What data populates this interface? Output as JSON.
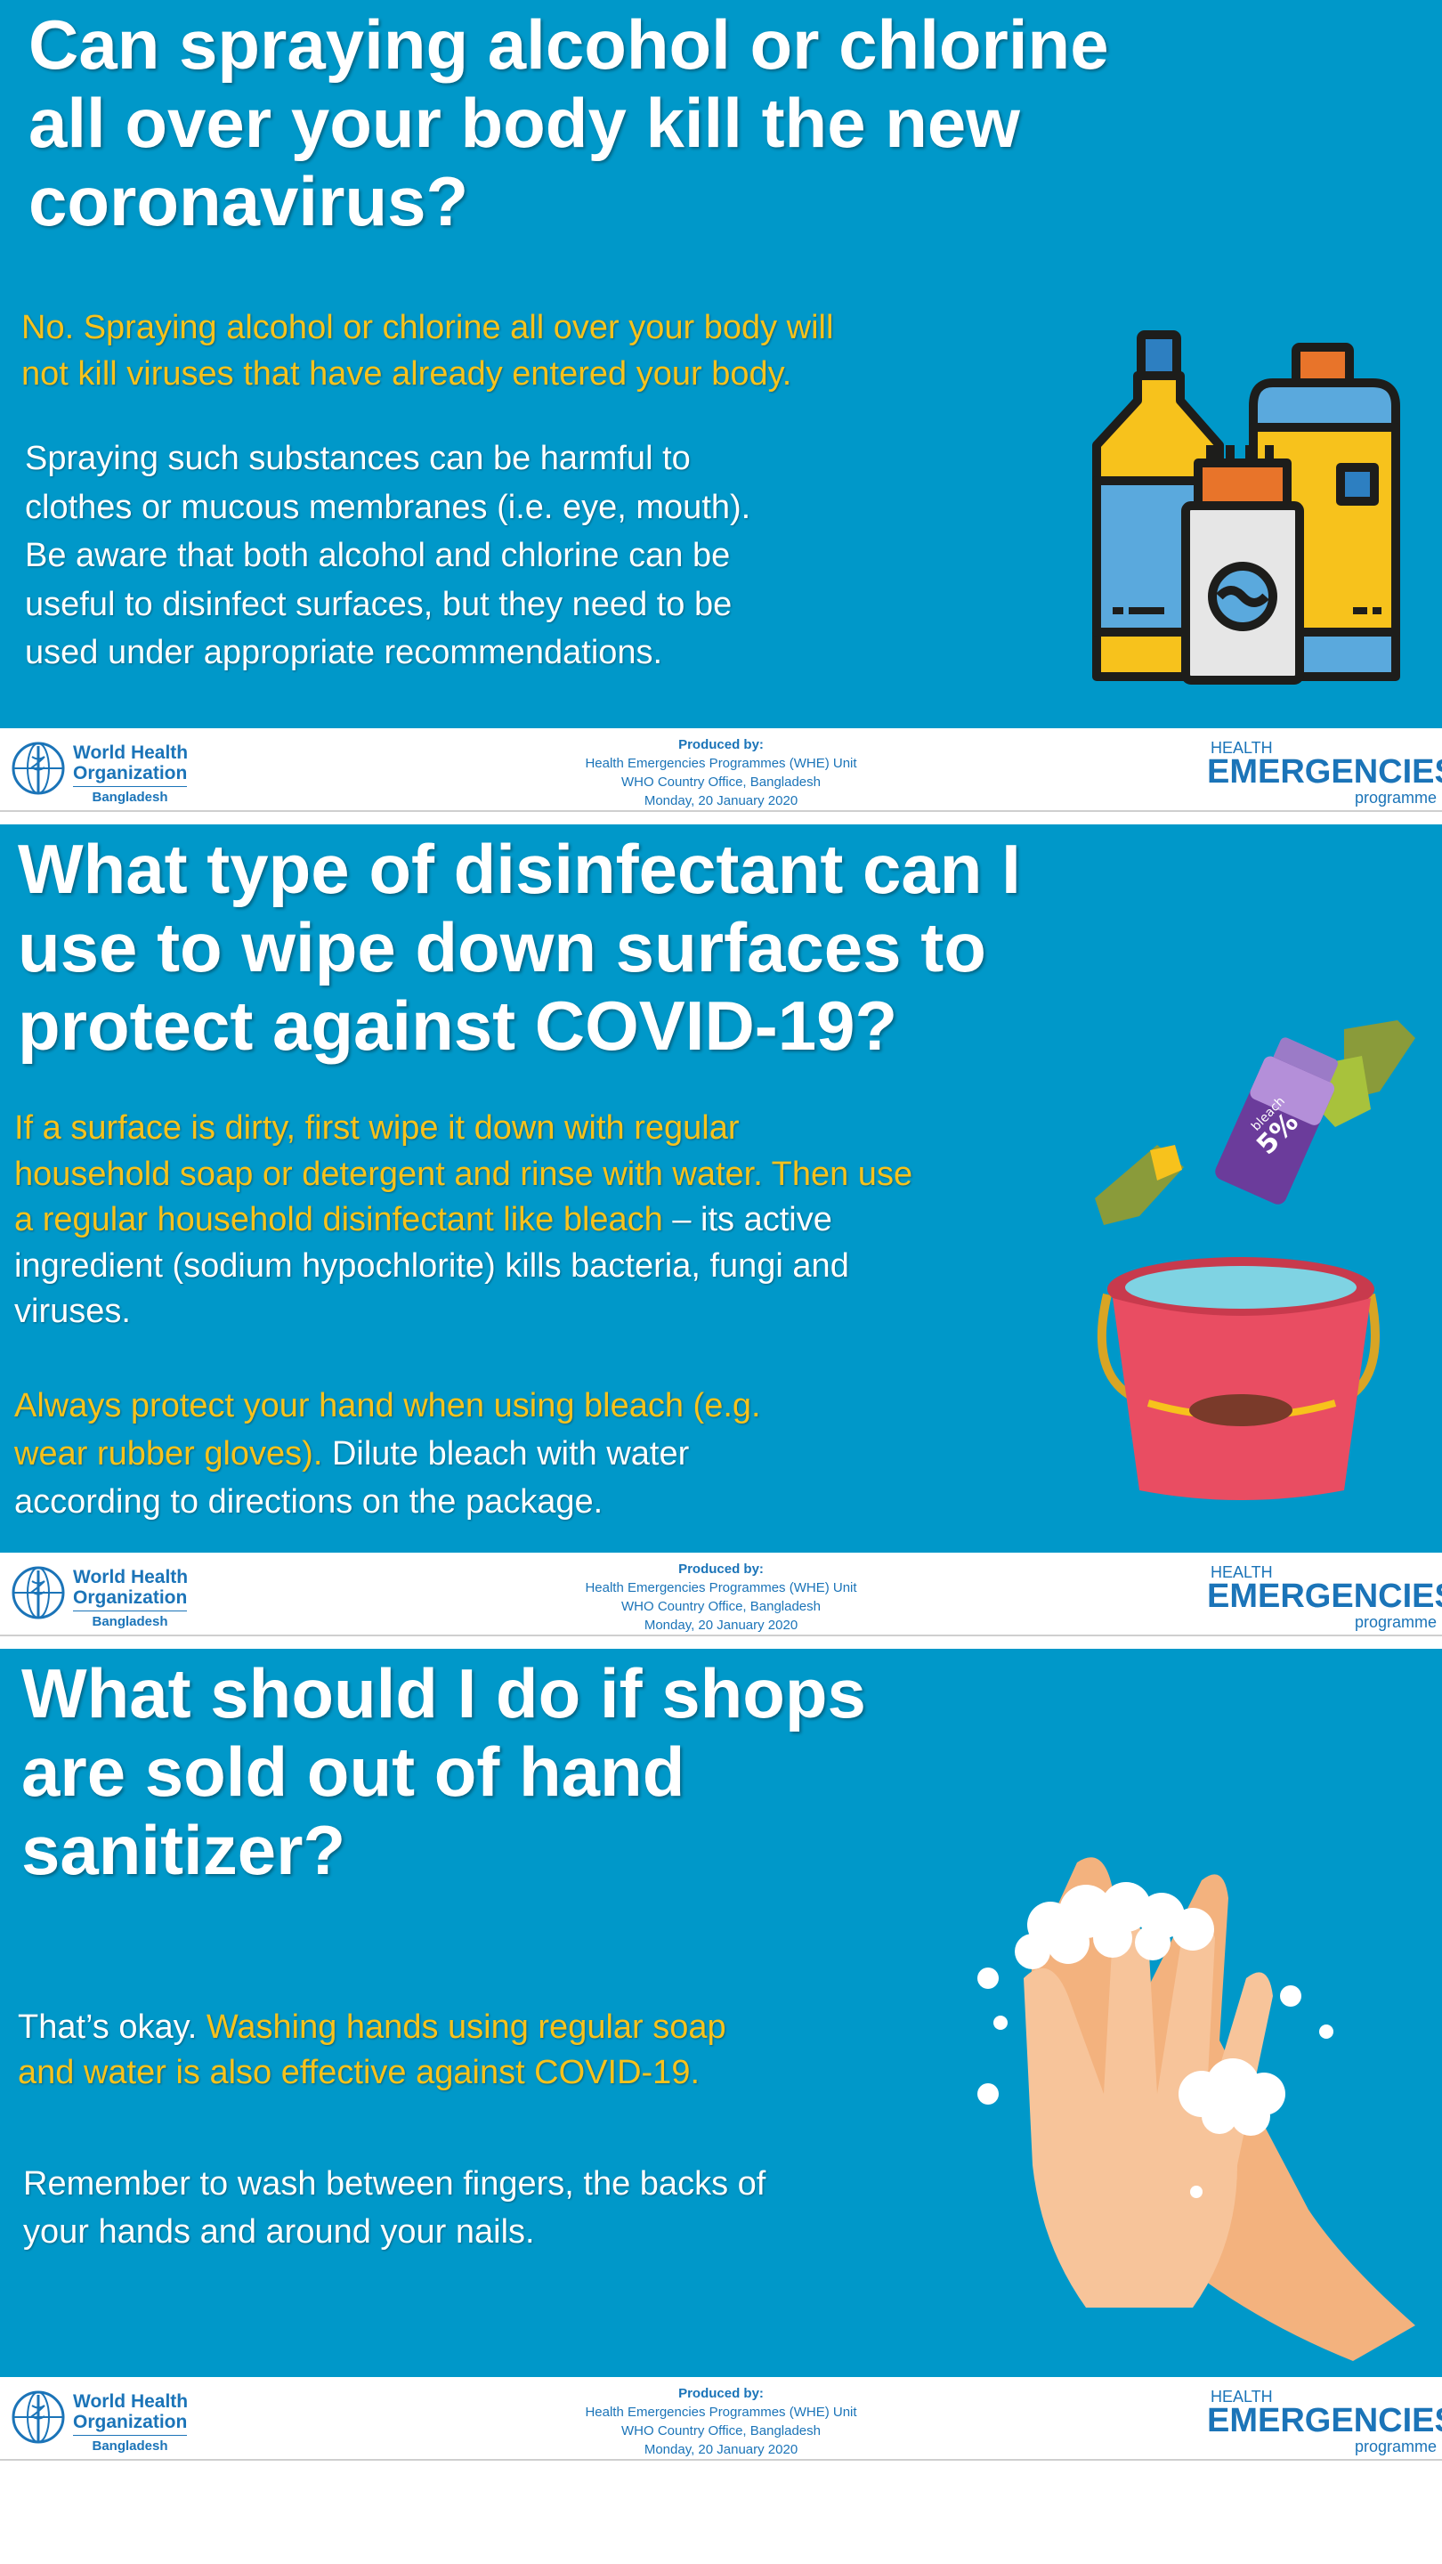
{
  "panels": [
    {
      "title_lines": [
        "Can spraying alcohol or chlorine",
        "all over your body kill the new",
        "coronavirus?"
      ],
      "highlight_lines": [
        "No. Spraying alcohol or chlorine all over your body will",
        "not kill viruses that have already entered your body."
      ],
      "body_lines": [
        "Spraying such substances can be harmful to",
        "clothes or mucous membranes (i.e. eye, mouth).",
        "Be aware that both alcohol and chlorine can be",
        "useful to disinfect surfaces, but they need to be",
        "used under appropriate recommendations."
      ]
    },
    {
      "title_lines": [
        "What type of disinfectant can I",
        "use to wipe down surfaces to",
        "protect against COVID-19?"
      ],
      "para1": {
        "hl_line1": "If a surface is dirty, first wipe it down with regular",
        "hl_line2": "household soap or detergent and rinse with water. Then use",
        "hl_line3": "a regular household disinfectant like bleach",
        "w_line3": " – its active",
        "w_line4": "ingredient (sodium hypochlorite) kills bacteria, fungi and",
        "w_line5": "viruses."
      },
      "para2": {
        "hl_line1": "Always protect your hand when using bleach (e.g.",
        "hl_line2": "wear rubber gloves).",
        "w_line2": " Dilute bleach with water",
        "w_line3": "according to directions on the package."
      },
      "bleach_label": "bleach",
      "bleach_percent": "5%"
    },
    {
      "title_lines": [
        "What should I do if shops",
        "are sold out of hand",
        "sanitizer?"
      ],
      "para1": {
        "w_line1": "That’s okay. ",
        "hl_line1": "Washing hands using regular soap",
        "hl_line2": "and water is also effective against COVID-19."
      },
      "body_lines": [
        "Remember to wash between fingers, the backs of",
        "your hands and around your nails."
      ]
    }
  ],
  "footer": {
    "who_line1": "World Health",
    "who_line2": "Organization",
    "who_country": "Bangladesh",
    "produced_by": "Produced by:",
    "unit": "Health Emergencies Programmes (WHE) Unit",
    "office": "WHO Country Office, Bangladesh",
    "date": "Monday, 20 January 2020",
    "he_top": "HEALTH",
    "he_mid": "EMERGENCIES",
    "he_bot": "programme"
  },
  "colors": {
    "panel_bg": "#0098c9",
    "highlight": "#f7c21c",
    "who_blue": "#1b74b8"
  },
  "icons": [
    "bottles-icon",
    "bleach-bucket-icon",
    "handwashing-icon",
    "who-emblem-icon"
  ]
}
